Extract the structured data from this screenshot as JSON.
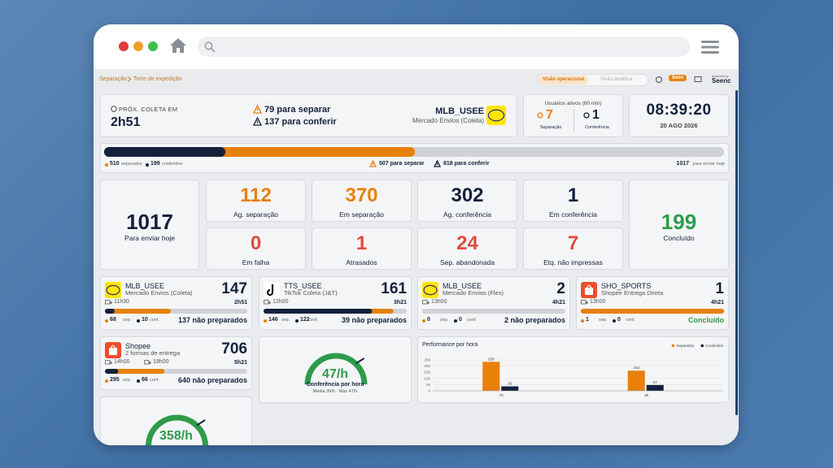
{
  "breadcrumb": {
    "section": "Separação",
    "page": "Torre de expedição"
  },
  "tabs": {
    "active": "Visão operacional",
    "other": "Visão analítica"
  },
  "refresh": "5min",
  "powered": {
    "label": "powered by",
    "brand": "Seenc"
  },
  "header": {
    "next_label": "PRÓX. COLETA EM",
    "next_value": "2h51",
    "to_separate": "79 para separar",
    "to_check": "137 para conferir",
    "account": "MLB_USEE",
    "carrier": "Mercado Envios (Coleta)",
    "users_title": "Usuários ativos (60 min)",
    "users": [
      {
        "count": 7,
        "label": "Separação",
        "color": "#e8800c"
      },
      {
        "count": 1,
        "label": "Conferência",
        "color": "#14213d"
      }
    ],
    "time": "08:39:20",
    "date": "20 AGO 2026"
  },
  "progress": {
    "separated": 510,
    "separated_label": "separados",
    "checked": 199,
    "checked_label": "conferidos",
    "to_separate": "507 para separar",
    "to_check": "818 para conferir",
    "total": 1017,
    "total_label": "para enviar hoje"
  },
  "total_tile": {
    "value": 1017,
    "label": "Para enviar hoje"
  },
  "done_tile": {
    "value": 199,
    "label": "Concluído",
    "color": "#2e9b4a"
  },
  "tiles": [
    {
      "value": 112,
      "label": "Ag. separação",
      "color": "#e8800c"
    },
    {
      "value": 370,
      "label": "Em separação",
      "color": "#e8800c"
    },
    {
      "value": 302,
      "label": "Ag. conferência",
      "color": "#14213d"
    },
    {
      "value": 1,
      "label": "Em conferência",
      "color": "#14213d"
    },
    {
      "value": 0,
      "label": "Em falha",
      "color": "#e04b3c"
    },
    {
      "value": 1,
      "label": "Atrasados",
      "color": "#e04b3c"
    },
    {
      "value": 24,
      "label": "Sep. abandonada",
      "color": "#e04b3c"
    },
    {
      "value": 7,
      "label": "Etq. não impressas",
      "color": "#e04b3c"
    }
  ],
  "units": {
    "sep": "sep.",
    "conf": "conf."
  },
  "cards": [
    {
      "logo": "ml",
      "account": "MLB_USEE",
      "carrier": "Mercado Envios (Coleta)",
      "times": [
        "11h30"
      ],
      "total": 147,
      "eta": "2h51",
      "sep": 68,
      "conf": 10,
      "pending": "137 não preparados",
      "pending_color": "#14213d"
    },
    {
      "logo": "tt",
      "account": "TTS_USEE",
      "carrier": "TikTok Coleta (J&T)",
      "times": [
        "12h00"
      ],
      "total": 161,
      "eta": "3h21",
      "sep": 146,
      "conf": 122,
      "pending": "39 não preparados",
      "pending_color": "#14213d"
    },
    {
      "logo": "ml",
      "account": "MLB_USEE",
      "carrier": "Mercado Envios (Flex)",
      "times": [
        "13h00"
      ],
      "total": 2,
      "eta": "4h21",
      "sep": 0,
      "conf": 0,
      "pending": "2 não preparados",
      "pending_color": "#14213d"
    },
    {
      "logo": "shopee",
      "account": "SHO_SPORTS",
      "carrier": "Shopee Entrega Direta",
      "times": [
        "13h00"
      ],
      "total": 1,
      "eta": "4h21",
      "sep": 1,
      "conf": 0,
      "pending": "Concluído",
      "pending_color": "#2e9b4a"
    },
    {
      "logo": "shopee",
      "account": "Shopee",
      "carrier": "2 formas de entrega",
      "times": [
        "14h00",
        "19h00"
      ],
      "total": 706,
      "eta": "5h21",
      "sep": 295,
      "conf": 66,
      "pending": "640 não preparados",
      "pending_color": "#14213d"
    }
  ],
  "gauges": [
    {
      "value": 47,
      "unit": "/h",
      "label": "Conferência por hora",
      "note": "Média 39/h · Máx 47/h"
    },
    {
      "value": 358,
      "unit": "/h"
    }
  ],
  "chart_data": {
    "type": "bar",
    "title": "Performance por hora",
    "categories": [
      "7h",
      "8h"
    ],
    "series": [
      {
        "name": "Separados",
        "color": "#e8800c",
        "values": [
          235,
          163
        ]
      },
      {
        "name": "Conferidos",
        "color": "#14213d",
        "values": [
          36,
          47
        ]
      }
    ],
    "ylim": [
      0,
      250
    ],
    "yticks": [
      0,
      50,
      100,
      150,
      200,
      250
    ],
    "grid": true,
    "legend": "top-right"
  }
}
